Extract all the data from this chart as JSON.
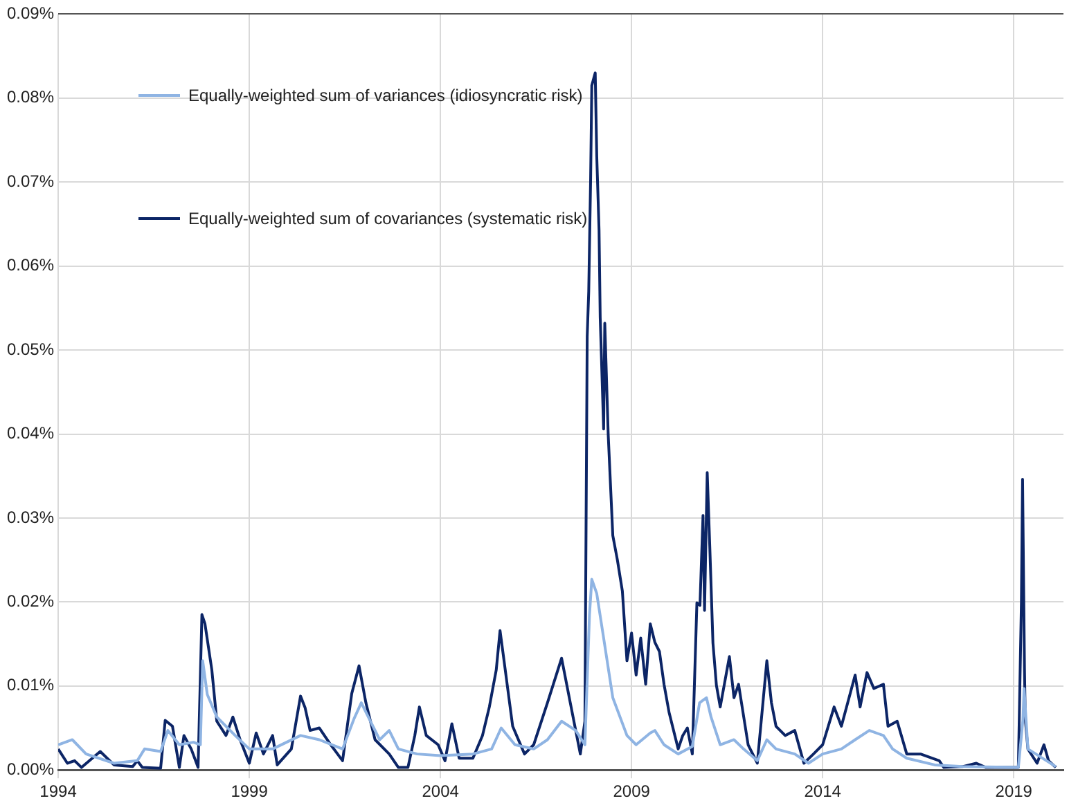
{
  "chart_data": {
    "type": "line",
    "xlim": [
      1994,
      2020.3
    ],
    "xticks": [
      1994,
      1999,
      2004,
      2009,
      2014,
      2019
    ],
    "ylim": [
      0,
      0.09
    ],
    "yticks": [
      {
        "value": 0,
        "label": "0.00%"
      },
      {
        "value": 0.01,
        "label": "0.01%"
      },
      {
        "value": 0.02,
        "label": "0.02%"
      },
      {
        "value": 0.03,
        "label": "0.03%"
      },
      {
        "value": 0.04,
        "label": "0.04%"
      },
      {
        "value": 0.05,
        "label": "0.05%"
      },
      {
        "value": 0.06,
        "label": "0.06%"
      },
      {
        "value": 0.07,
        "label": "0.07%"
      },
      {
        "value": 0.08,
        "label": "0.08%"
      },
      {
        "value": 0.09,
        "label": "0.09%"
      }
    ],
    "grid": true,
    "legend": "top left",
    "marker": "none",
    "line_style": "solid",
    "series": [
      {
        "name": "Equally-weighted sum of variances (idiosyncratic risk)",
        "color": "#8fb4e3",
        "x": [
          1994.0,
          1994.37,
          1994.73,
          1995.46,
          1996.07,
          1996.26,
          1996.68,
          1996.87,
          1997.17,
          1997.54,
          1997.72,
          1997.78,
          1997.9,
          1998.15,
          1998.63,
          1999.0,
          1999.61,
          2000.34,
          2000.83,
          2001.44,
          2001.74,
          2001.93,
          2002.17,
          2002.41,
          2002.66,
          2002.9,
          2003.39,
          2004.0,
          2004.85,
          2005.34,
          2005.59,
          2005.95,
          2006.44,
          2006.8,
          2007.17,
          2007.54,
          2007.78,
          2007.9,
          2007.96,
          2008.09,
          2008.27,
          2008.51,
          2008.88,
          2009.12,
          2009.49,
          2009.61,
          2009.85,
          2010.22,
          2010.59,
          2010.78,
          2010.96,
          2011.08,
          2011.32,
          2011.68,
          2011.93,
          2012.29,
          2012.54,
          2012.78,
          2013.27,
          2013.63,
          2014.0,
          2014.49,
          2014.85,
          2015.22,
          2015.59,
          2015.83,
          2016.2,
          2016.93,
          2017.66,
          2019.12,
          2019.24,
          2019.27,
          2019.37,
          2020.1
        ],
        "values": [
          0.003,
          0.0036,
          0.0019,
          0.0008,
          0.0011,
          0.0025,
          0.0022,
          0.0047,
          0.003,
          0.0033,
          0.003,
          0.013,
          0.009,
          0.0063,
          0.0041,
          0.0025,
          0.0025,
          0.0041,
          0.0036,
          0.0025,
          0.0061,
          0.008,
          0.0058,
          0.0036,
          0.0047,
          0.0025,
          0.0019,
          0.0017,
          0.0019,
          0.0025,
          0.005,
          0.003,
          0.0025,
          0.0036,
          0.0058,
          0.0047,
          0.003,
          0.0185,
          0.0227,
          0.021,
          0.0157,
          0.0086,
          0.0041,
          0.003,
          0.0044,
          0.0047,
          0.003,
          0.0019,
          0.0028,
          0.008,
          0.0086,
          0.0063,
          0.003,
          0.0036,
          0.0025,
          0.0011,
          0.0036,
          0.0025,
          0.0019,
          0.0008,
          0.0019,
          0.0025,
          0.0036,
          0.0047,
          0.0041,
          0.0025,
          0.0014,
          0.0006,
          0.0004,
          0.0003,
          0.006,
          0.0097,
          0.0025,
          0.0004
        ]
      },
      {
        "name": "Equally-weighted sum of covariances (systematic risk)",
        "color": "#0c2566",
        "x": [
          1994.0,
          1994.24,
          1994.43,
          1994.61,
          1995.1,
          1995.46,
          1995.95,
          1996.07,
          1996.2,
          1996.68,
          1996.8,
          1996.99,
          1997.17,
          1997.29,
          1997.48,
          1997.66,
          1997.76,
          1997.84,
          1998.02,
          1998.15,
          1998.39,
          1998.57,
          1998.76,
          1999.0,
          1999.18,
          1999.37,
          1999.61,
          1999.73,
          2000.1,
          2000.34,
          2000.46,
          2000.59,
          2000.83,
          2001.13,
          2001.44,
          2001.68,
          2001.87,
          2002.05,
          2002.29,
          2002.66,
          2002.9,
          2003.15,
          2003.33,
          2003.45,
          2003.63,
          2003.94,
          2004.12,
          2004.3,
          2004.49,
          2004.85,
          2005.1,
          2005.28,
          2005.46,
          2005.56,
          2005.65,
          2005.89,
          2006.2,
          2006.44,
          2006.8,
          2007.17,
          2007.41,
          2007.66,
          2007.78,
          2007.84,
          2007.88,
          2007.93,
          2007.96,
          2008.05,
          2008.09,
          2008.15,
          2008.18,
          2008.27,
          2008.3,
          2008.39,
          2008.51,
          2008.63,
          2008.76,
          2008.88,
          2009.0,
          2009.12,
          2009.24,
          2009.37,
          2009.49,
          2009.61,
          2009.73,
          2009.85,
          2009.98,
          2010.22,
          2010.34,
          2010.46,
          2010.59,
          2010.71,
          2010.79,
          2010.87,
          2010.91,
          2010.98,
          2011.05,
          2011.13,
          2011.22,
          2011.32,
          2011.56,
          2011.68,
          2011.8,
          2012.05,
          2012.29,
          2012.54,
          2012.66,
          2012.78,
          2013.02,
          2013.27,
          2013.51,
          2013.76,
          2014.0,
          2014.3,
          2014.49,
          2014.85,
          2014.98,
          2015.16,
          2015.34,
          2015.59,
          2015.71,
          2015.95,
          2016.2,
          2016.56,
          2017.05,
          2017.17,
          2017.66,
          2018.02,
          2018.27,
          2018.76,
          2019.12,
          2019.2,
          2019.23,
          2019.28,
          2019.3,
          2019.37,
          2019.61,
          2019.79,
          2019.91,
          2020.1
        ],
        "values": [
          0.0025,
          0.0008,
          0.0011,
          0.0003,
          0.0022,
          0.0006,
          0.0004,
          0.0011,
          0.0003,
          0.0002,
          0.0059,
          0.0052,
          0.0003,
          0.0041,
          0.0025,
          0.0003,
          0.0185,
          0.0174,
          0.0119,
          0.0058,
          0.0041,
          0.0063,
          0.0036,
          0.0008,
          0.0044,
          0.0019,
          0.0041,
          0.0006,
          0.0025,
          0.0088,
          0.0074,
          0.0047,
          0.005,
          0.003,
          0.0011,
          0.0091,
          0.0124,
          0.008,
          0.0036,
          0.0019,
          0.0003,
          0.0003,
          0.0041,
          0.0075,
          0.0041,
          0.003,
          0.0011,
          0.0055,
          0.0014,
          0.0014,
          0.0041,
          0.0075,
          0.0119,
          0.0166,
          0.0135,
          0.0052,
          0.0019,
          0.003,
          0.008,
          0.0133,
          0.0077,
          0.0019,
          0.0058,
          0.0516,
          0.057,
          0.0705,
          0.0815,
          0.083,
          0.0731,
          0.0643,
          0.0539,
          0.0406,
          0.0532,
          0.0399,
          0.0279,
          0.025,
          0.0213,
          0.013,
          0.0163,
          0.0113,
          0.0157,
          0.0102,
          0.0174,
          0.0152,
          0.0141,
          0.0102,
          0.0069,
          0.0025,
          0.0041,
          0.005,
          0.0019,
          0.0199,
          0.0196,
          0.0303,
          0.019,
          0.0354,
          0.0262,
          0.0151,
          0.0101,
          0.0075,
          0.0135,
          0.0086,
          0.0102,
          0.003,
          0.0008,
          0.013,
          0.008,
          0.0052,
          0.0041,
          0.0047,
          0.0008,
          0.0019,
          0.003,
          0.0075,
          0.0052,
          0.0113,
          0.0075,
          0.0116,
          0.0097,
          0.0102,
          0.0052,
          0.0058,
          0.0019,
          0.0019,
          0.0011,
          0.0003,
          0.0004,
          0.0008,
          0.0003,
          0.0003,
          0.0003,
          0.02,
          0.0346,
          0.0121,
          0.0061,
          0.0025,
          0.0008,
          0.003,
          0.0011,
          0.0003
        ]
      }
    ]
  }
}
